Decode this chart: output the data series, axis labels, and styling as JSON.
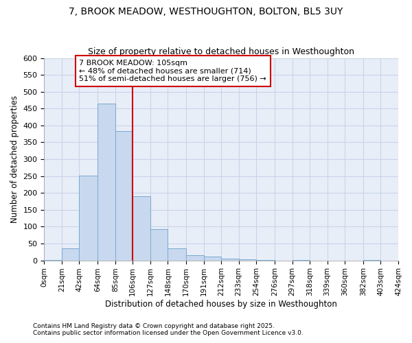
{
  "title_line1": "7, BROOK MEADOW, WESTHOUGHTON, BOLTON, BL5 3UY",
  "title_line2": "Size of property relative to detached houses in Westhoughton",
  "xlabel": "Distribution of detached houses by size in Westhoughton",
  "ylabel": "Number of detached properties",
  "bar_color": "#c8d8ee",
  "bar_edge_color": "#7aaad0",
  "grid_color": "#c8d4e8",
  "plot_bg_color": "#e8eef8",
  "figure_bg_color": "#ffffff",
  "bins": [
    0,
    21,
    42,
    64,
    85,
    106,
    127,
    148,
    170,
    191,
    212,
    233,
    254,
    276,
    297,
    318,
    339,
    360,
    382,
    403,
    424
  ],
  "bin_labels": [
    "0sqm",
    "21sqm",
    "42sqm",
    "64sqm",
    "85sqm",
    "106sqm",
    "127sqm",
    "148sqm",
    "170sqm",
    "191sqm",
    "212sqm",
    "233sqm",
    "254sqm",
    "276sqm",
    "297sqm",
    "318sqm",
    "339sqm",
    "360sqm",
    "382sqm",
    "403sqm",
    "424sqm"
  ],
  "counts": [
    2,
    35,
    252,
    465,
    383,
    190,
    93,
    36,
    16,
    11,
    5,
    3,
    1,
    0,
    1,
    0,
    0,
    0,
    1,
    0
  ],
  "ylim": [
    0,
    600
  ],
  "yticks": [
    0,
    50,
    100,
    150,
    200,
    250,
    300,
    350,
    400,
    450,
    500,
    550,
    600
  ],
  "vline_x": 106,
  "vline_color": "#cc0000",
  "annotation_text": "7 BROOK MEADOW: 105sqm\n← 48% of detached houses are smaller (714)\n51% of semi-detached houses are larger (756) →",
  "annotation_box_color": "#ffffff",
  "annotation_box_edge_color": "#cc0000",
  "footnote1": "Contains HM Land Registry data © Crown copyright and database right 2025.",
  "footnote2": "Contains public sector information licensed under the Open Government Licence v3.0."
}
